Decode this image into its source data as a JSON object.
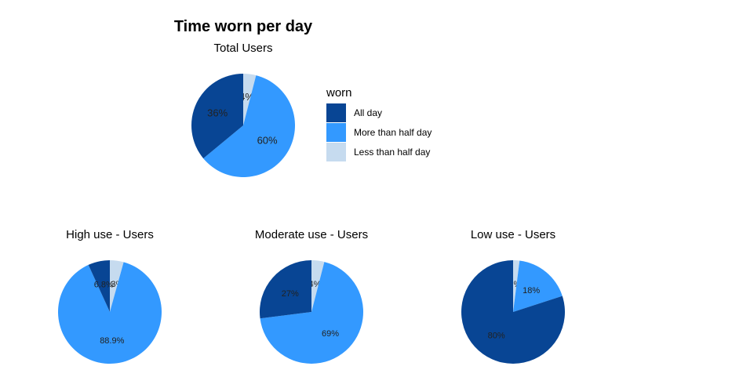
{
  "chart_data": [
    {
      "type": "pie",
      "title": "Time worn per day",
      "subtitle": "Total Users",
      "categories": [
        "All day",
        "More than half day",
        "Less than half day"
      ],
      "values": [
        36,
        60,
        4
      ],
      "labels": [
        "36%",
        "60%",
        "4%"
      ],
      "colors": [
        "#084594",
        "#3399FF",
        "#C6DBEF"
      ],
      "legend": {
        "title": "worn",
        "placement": "right"
      }
    },
    {
      "type": "pie",
      "subtitle": "High use - Users",
      "categories": [
        "All day",
        "More than half day",
        "Less than half day"
      ],
      "values": [
        6.8,
        88.9,
        4.3
      ],
      "labels": [
        "6.8%",
        "88.9%",
        "4.3%"
      ],
      "colors": [
        "#084594",
        "#3399FF",
        "#C6DBEF"
      ]
    },
    {
      "type": "pie",
      "subtitle": "Moderate use - Users",
      "categories": [
        "All day",
        "More than half day",
        "Less than half day"
      ],
      "values": [
        27,
        69,
        4
      ],
      "labels": [
        "27%",
        "69%",
        "4%"
      ],
      "colors": [
        "#084594",
        "#3399FF",
        "#C6DBEF"
      ]
    },
    {
      "type": "pie",
      "subtitle": "Low use - Users",
      "categories": [
        "All day",
        "More than half day",
        "Less than half day"
      ],
      "values": [
        80,
        18,
        2
      ],
      "labels": [
        "80%",
        "18%",
        "2%"
      ],
      "colors": [
        "#084594",
        "#3399FF",
        "#C6DBEF"
      ]
    }
  ]
}
